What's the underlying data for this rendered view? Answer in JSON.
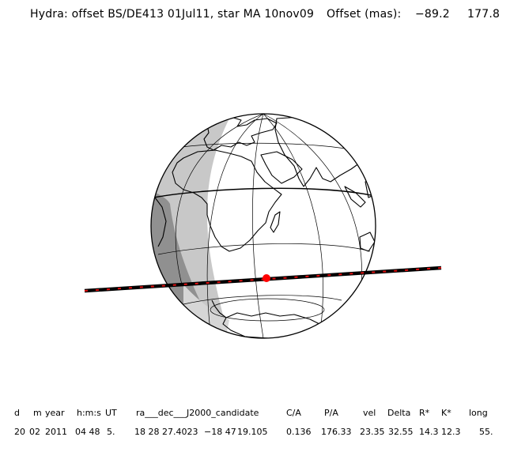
{
  "header": {
    "title": "Hydra: offset BS/DE413 01Jul11, star MA 10nov09",
    "offset_label": "Offset (mas):",
    "offset_x": "−89.2",
    "offset_y": "177.8"
  },
  "colors": {
    "track": "#2a2a2a",
    "track_marks": "#e01010",
    "star_dot": "#ff0000",
    "penumbra": "#c8c8c8",
    "umbra": "#909090",
    "coast": "#000000"
  },
  "table": {
    "headers": [
      "d",
      "m",
      "year",
      "h:m:s",
      "UT",
      "ra___dec___J2000_candidate",
      "C/A",
      "P/A",
      "vel",
      "Delta",
      "R*",
      "K*",
      "long"
    ],
    "values": [
      "20",
      "02",
      "2011",
      "04 48",
      "5.",
      "18 28 27.4023",
      "−18 47",
      "19.105",
      "0.136",
      "176.33",
      "23.35",
      "32.55",
      "14.3",
      "12.3",
      "55."
    ]
  }
}
